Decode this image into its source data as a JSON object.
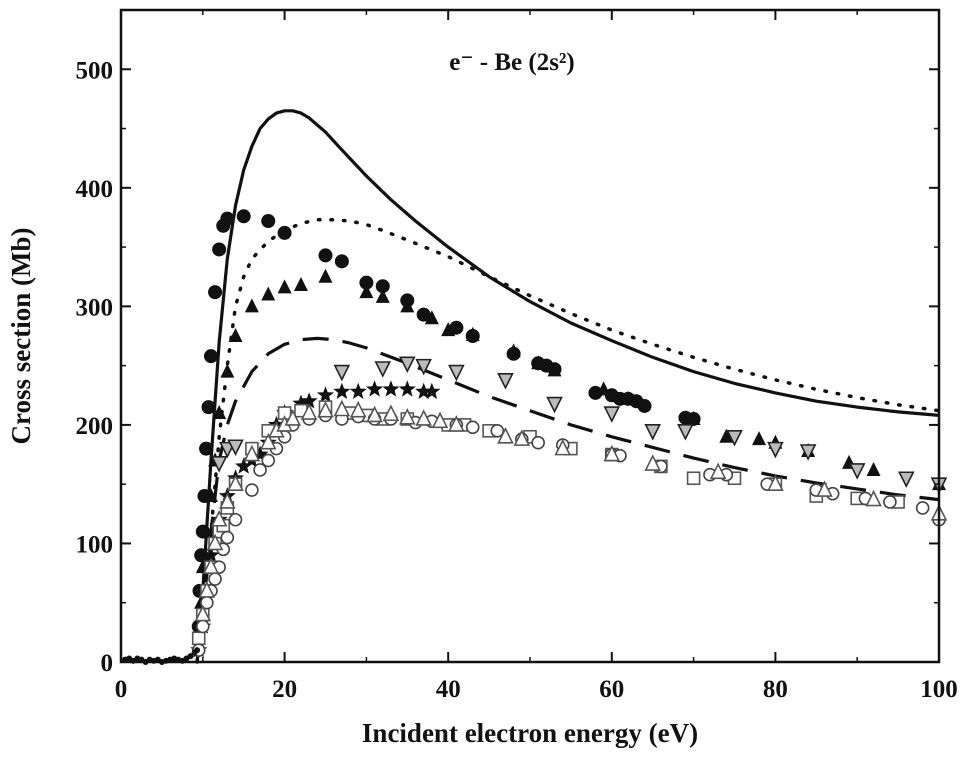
{
  "chart_data": {
    "type": "line",
    "annotation": "e⁻ - Be (2s²)",
    "xlabel": "Incident electron energy (eV)",
    "ylabel": "Cross section (Mb)",
    "xlim": [
      0,
      100
    ],
    "ylim": [
      0,
      550
    ],
    "xticks": [
      0,
      20,
      40,
      60,
      80,
      100
    ],
    "yticks": [
      0,
      100,
      200,
      300,
      400,
      500
    ],
    "grid": false,
    "legend": "none",
    "series": [
      {
        "style": "solid",
        "x": [
          9.3,
          10,
          11,
          12,
          13,
          14,
          15,
          16,
          17,
          18,
          19,
          20,
          21,
          22,
          23,
          25,
          27,
          30,
          33,
          36,
          40,
          45,
          50,
          55,
          60,
          65,
          70,
          75,
          80,
          85,
          90,
          95,
          100
        ],
        "y": [
          0,
          60,
          170,
          270,
          340,
          385,
          415,
          435,
          450,
          458,
          463,
          465,
          465,
          463,
          459,
          447,
          432,
          410,
          390,
          372,
          350,
          325,
          304,
          286,
          271,
          257,
          245,
          235,
          227,
          220,
          215,
          211,
          208
        ]
      },
      {
        "style": "dotted",
        "x": [
          9.3,
          10,
          11,
          12,
          13,
          14,
          15,
          16,
          18,
          20,
          22,
          24,
          26,
          28,
          30,
          32,
          35,
          40,
          45,
          50,
          55,
          60,
          65,
          70,
          75,
          80,
          85,
          90,
          95,
          100
        ],
        "y": [
          0,
          40,
          110,
          190,
          250,
          300,
          325,
          340,
          355,
          364,
          370,
          373,
          373,
          372,
          369,
          364,
          356,
          342,
          325,
          309,
          294,
          280,
          268,
          257,
          247,
          238,
          230,
          223,
          217,
          212
        ]
      },
      {
        "style": "dashed",
        "x": [
          9.3,
          10,
          11,
          12,
          13,
          14,
          16,
          18,
          20,
          22,
          24,
          26,
          28,
          30,
          35,
          40,
          45,
          50,
          55,
          60,
          65,
          70,
          75,
          80,
          85,
          90,
          95,
          100
        ],
        "y": [
          0,
          40,
          110,
          170,
          200,
          220,
          245,
          260,
          268,
          272,
          273,
          272,
          269,
          265,
          252,
          238,
          224,
          212,
          200,
          190,
          181,
          172,
          164,
          157,
          151,
          146,
          141,
          137
        ]
      },
      {
        "marker": "filled-circle",
        "x": [
          9.5,
          9.6,
          9.8,
          10,
          10.2,
          10.4,
          10.7,
          11,
          11.5,
          12,
          12.5,
          13,
          15,
          18,
          20,
          25,
          27,
          30,
          32,
          35,
          37,
          41,
          43,
          48,
          51,
          52,
          53,
          58,
          60,
          61,
          62,
          63,
          64,
          69,
          70
        ],
        "y": [
          30,
          60,
          90,
          110,
          140,
          180,
          215,
          258,
          312,
          348,
          368,
          374,
          376,
          372,
          362,
          343,
          338,
          320,
          317,
          305,
          293,
          282,
          275,
          260,
          252,
          250,
          247,
          227,
          225,
          222,
          222,
          220,
          216,
          206,
          205
        ]
      },
      {
        "marker": "filled-triangle",
        "x": [
          9.5,
          9.8,
          10,
          10.5,
          11,
          11.5,
          12,
          13,
          14,
          16,
          18,
          20,
          22,
          25,
          30,
          32,
          35,
          38,
          40,
          43,
          48,
          51,
          53,
          59,
          62,
          70,
          74,
          78,
          80,
          84,
          89,
          92,
          100
        ],
        "y": [
          20,
          50,
          80,
          110,
          140,
          170,
          210,
          245,
          275,
          300,
          310,
          316,
          318,
          325,
          312,
          308,
          300,
          290,
          280,
          276,
          262,
          252,
          246,
          230,
          222,
          205,
          190,
          188,
          185,
          178,
          168,
          162,
          150
        ]
      },
      {
        "marker": "open-inverted-triangle",
        "x": [
          12,
          13,
          14,
          27,
          32,
          35,
          37,
          41,
          47,
          53,
          60,
          65,
          69,
          75,
          80,
          84,
          90,
          96,
          100
        ],
        "y": [
          168,
          180,
          182,
          245,
          248,
          252,
          250,
          245,
          238,
          218,
          210,
          195,
          195,
          190,
          180,
          178,
          162,
          155,
          150
        ]
      },
      {
        "marker": "star",
        "x": [
          9.5,
          10,
          10.5,
          11,
          12,
          13,
          14,
          15,
          16,
          17,
          18,
          19,
          20,
          22,
          23,
          25,
          27,
          29,
          31,
          33,
          35,
          37,
          38
        ],
        "y": [
          10,
          30,
          60,
          90,
          120,
          140,
          155,
          165,
          170,
          175,
          185,
          200,
          210,
          218,
          220,
          225,
          228,
          228,
          230,
          230,
          230,
          228,
          228
        ]
      },
      {
        "marker": "open-square",
        "x": [
          9.5,
          10,
          10.5,
          11,
          11.5,
          12,
          12.5,
          13,
          14,
          16,
          18,
          20,
          22,
          25,
          28,
          30,
          32,
          35,
          40,
          42,
          45,
          50,
          55,
          60,
          66,
          70,
          75,
          80,
          85,
          90,
          95
        ],
        "y": [
          20,
          40,
          60,
          80,
          100,
          110,
          115,
          130,
          150,
          180,
          195,
          210,
          212,
          215,
          210,
          208,
          205,
          205,
          200,
          200,
          195,
          190,
          180,
          175,
          165,
          155,
          155,
          150,
          140,
          138,
          135
        ]
      },
      {
        "marker": "open-circle",
        "x": [
          9.5,
          10,
          10.5,
          11,
          11.5,
          12,
          12.5,
          13,
          14,
          16,
          17,
          18,
          19,
          20,
          21,
          23,
          25,
          27,
          29,
          31,
          33,
          36,
          38,
          41,
          43,
          46,
          49,
          51,
          54,
          60,
          61,
          66,
          72,
          74,
          79,
          85,
          87,
          91,
          94,
          98,
          100
        ],
        "y": [
          10,
          30,
          50,
          60,
          70,
          80,
          95,
          105,
          120,
          145,
          162,
          170,
          180,
          190,
          200,
          205,
          208,
          205,
          207,
          205,
          205,
          202,
          203,
          200,
          198,
          195,
          188,
          185,
          183,
          175,
          174,
          165,
          158,
          158,
          150,
          145,
          142,
          138,
          135,
          130,
          120
        ]
      },
      {
        "marker": "open-triangle",
        "x": [
          10,
          10.5,
          11,
          11.5,
          12,
          13,
          14,
          16,
          18,
          19,
          20,
          21,
          23,
          25,
          27,
          29,
          31,
          33,
          35,
          37,
          39,
          41,
          47,
          49,
          54,
          60,
          65,
          73,
          80,
          86,
          92,
          100
        ],
        "y": [
          40,
          60,
          80,
          100,
          120,
          135,
          150,
          175,
          185,
          195,
          200,
          205,
          210,
          212,
          213,
          212,
          208,
          209,
          206,
          205,
          203,
          200,
          190,
          188,
          180,
          175,
          167,
          160,
          150,
          145,
          137,
          125
        ]
      },
      {
        "marker": "near-threshold-dots",
        "x": [
          0.5,
          1,
          1.5,
          2,
          2.5,
          3,
          3.5,
          4,
          4.5,
          5,
          5.5,
          6,
          6.5,
          7,
          7.5,
          8,
          8.5,
          9,
          9.3
        ],
        "y": [
          2,
          3,
          1,
          3,
          2,
          0,
          2,
          1,
          2,
          0,
          1,
          2,
          3,
          2,
          1,
          3,
          5,
          8,
          10
        ]
      }
    ]
  }
}
